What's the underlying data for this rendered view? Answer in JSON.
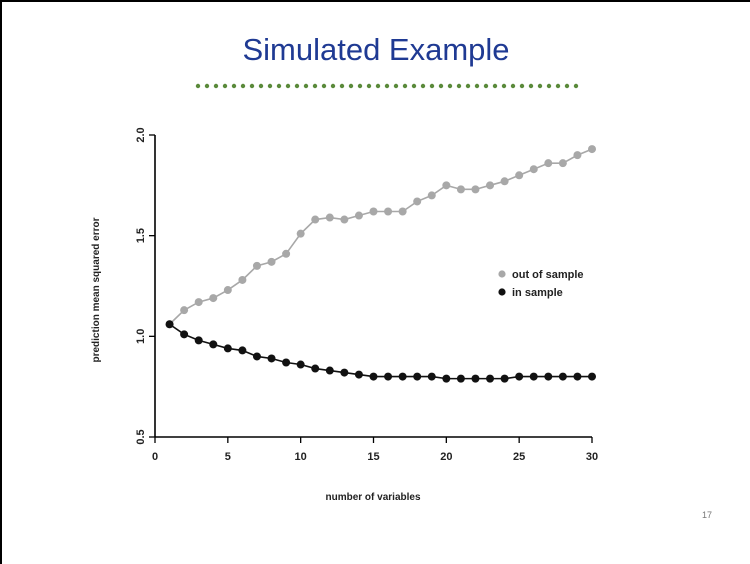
{
  "slide": {
    "title": "Simulated Example",
    "page_number": "17"
  },
  "colors": {
    "title": "#1f3a93",
    "divider_dots": "#5a8a3a",
    "out_of_sample": "#a8a8a8",
    "in_sample": "#111111"
  },
  "chart_data": {
    "type": "line",
    "xlabel": "number of variables",
    "ylabel": "prediction mean squared error",
    "xlim": [
      0,
      30
    ],
    "ylim": [
      0.5,
      2.0
    ],
    "xticks": [
      0,
      5,
      10,
      15,
      20,
      25,
      30
    ],
    "yticks": [
      0.5,
      1.0,
      1.5,
      2.0
    ],
    "ytick_labels": [
      "0.5",
      "1.0",
      "1.5",
      "2.0"
    ],
    "grid": false,
    "legend_position": "right",
    "x": [
      1,
      2,
      3,
      4,
      5,
      6,
      7,
      8,
      9,
      10,
      11,
      12,
      13,
      14,
      15,
      16,
      17,
      18,
      19,
      20,
      21,
      22,
      23,
      24,
      25,
      26,
      27,
      28,
      29,
      30
    ],
    "series": [
      {
        "name": "out of sample",
        "color": "#a8a8a8",
        "values": [
          1.06,
          1.13,
          1.17,
          1.19,
          1.23,
          1.28,
          1.35,
          1.37,
          1.41,
          1.51,
          1.58,
          1.59,
          1.58,
          1.6,
          1.62,
          1.62,
          1.62,
          1.67,
          1.7,
          1.75,
          1.73,
          1.73,
          1.75,
          1.77,
          1.8,
          1.83,
          1.86,
          1.86,
          1.9,
          1.93
        ]
      },
      {
        "name": "in sample",
        "color": "#111111",
        "values": [
          1.06,
          1.01,
          0.98,
          0.96,
          0.94,
          0.93,
          0.9,
          0.89,
          0.87,
          0.86,
          0.84,
          0.83,
          0.82,
          0.81,
          0.8,
          0.8,
          0.8,
          0.8,
          0.8,
          0.79,
          0.79,
          0.79,
          0.79,
          0.79,
          0.8,
          0.8,
          0.8,
          0.8,
          0.8,
          0.8
        ]
      }
    ]
  }
}
